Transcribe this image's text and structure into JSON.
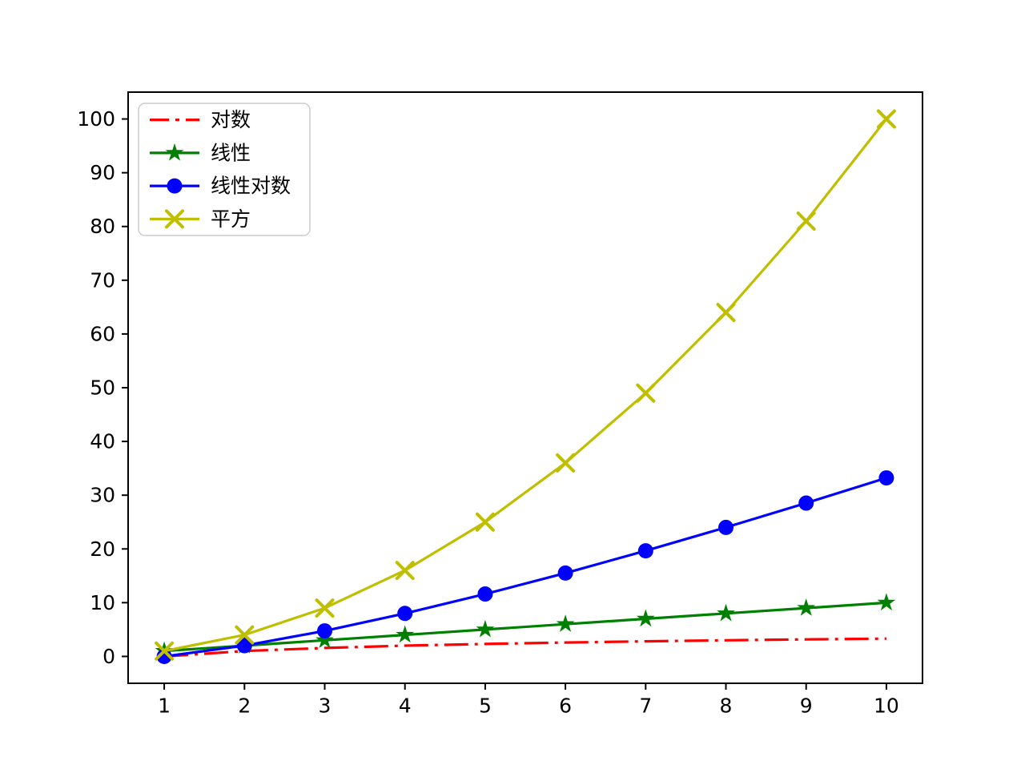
{
  "figure": {
    "background": "#ffffff",
    "frame_color": "#000000"
  },
  "chart_data": {
    "type": "line",
    "title": "",
    "xlabel": "",
    "ylabel": "",
    "x": [
      1,
      2,
      3,
      4,
      5,
      6,
      7,
      8,
      9,
      10
    ],
    "series": [
      {
        "id": "log",
        "label": "对数",
        "color": "#ff0000",
        "linestyle": "dashdot",
        "marker": "none",
        "values": [
          0,
          1,
          1.58,
          2,
          2.32,
          2.58,
          2.81,
          3,
          3.17,
          3.32
        ]
      },
      {
        "id": "linear",
        "label": "线性",
        "color": "#008000",
        "linestyle": "solid",
        "marker": "star",
        "values": [
          1,
          2,
          3,
          4,
          5,
          6,
          7,
          8,
          9,
          10
        ]
      },
      {
        "id": "linearlog",
        "label": "线性对数",
        "color": "#0000ff",
        "linestyle": "solid",
        "marker": "circle",
        "values": [
          0,
          2,
          4.75,
          8,
          11.61,
          15.51,
          19.65,
          24,
          28.53,
          33.22
        ]
      },
      {
        "id": "square",
        "label": "平方",
        "color": "#bfbf00",
        "linestyle": "solid",
        "marker": "x",
        "values": [
          1,
          4,
          9,
          16,
          25,
          36,
          49,
          64,
          81,
          100
        ]
      }
    ],
    "xticks": [
      "1",
      "2",
      "3",
      "4",
      "5",
      "6",
      "7",
      "8",
      "9",
      "10"
    ],
    "xtick_values": [
      1,
      2,
      3,
      4,
      5,
      6,
      7,
      8,
      9,
      10
    ],
    "yticks": [
      "0",
      "10",
      "20",
      "30",
      "40",
      "50",
      "60",
      "70",
      "80",
      "90",
      "100"
    ],
    "ytick_values": [
      0,
      10,
      20,
      30,
      40,
      50,
      60,
      70,
      80,
      90,
      100
    ],
    "xlim": [
      0.55,
      10.45
    ],
    "ylim": [
      -5,
      105
    ],
    "grid": false,
    "legend_position": "upper-left",
    "legend_border_color": "#cccccc"
  }
}
